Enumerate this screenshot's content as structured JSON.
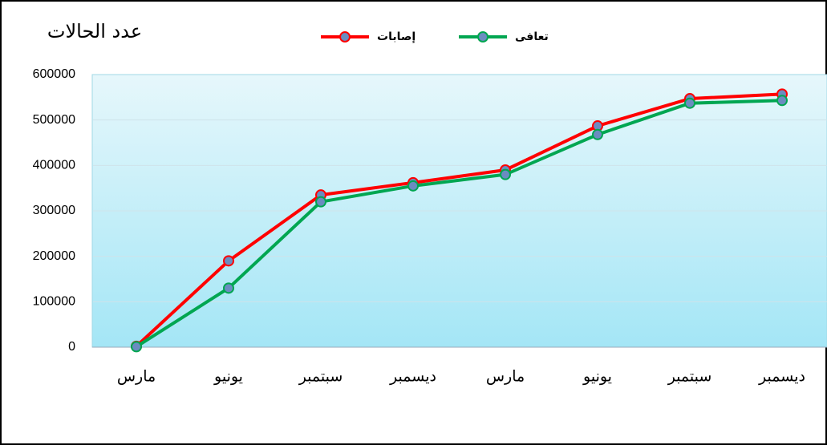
{
  "chart_data": {
    "type": "line",
    "title": "عدد الحالات",
    "categories": [
      "مارس",
      "يونيو",
      "سبتمبر",
      "ديسمبر",
      "مارس",
      "يونيو",
      "سبتمبر",
      "ديسمبر"
    ],
    "series": [
      {
        "name": "إصابات",
        "color": "#ff0000",
        "values": [
          2000,
          190000,
          335000,
          362000,
          390000,
          487000,
          547000,
          557000
        ]
      },
      {
        "name": "تعافى",
        "color": "#00a651",
        "values": [
          1000,
          130000,
          320000,
          355000,
          380000,
          468000,
          537000,
          543000
        ]
      }
    ],
    "ylim": [
      0,
      600000
    ],
    "yticks": [
      0,
      100000,
      200000,
      300000,
      400000,
      500000,
      600000
    ],
    "grid": true
  }
}
